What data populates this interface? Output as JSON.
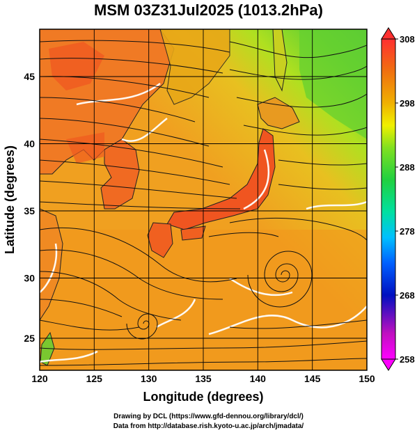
{
  "title": "MSM 03Z31Jul2025 (1013.2hPa)",
  "map": {
    "lon_range": [
      120,
      150
    ],
    "lat_range": [
      22.5,
      48
    ],
    "lon_ticks": [
      "120",
      "125",
      "130",
      "135",
      "140",
      "145",
      "150"
    ],
    "lat_ticks": [
      "25",
      "30",
      "35",
      "40",
      "45"
    ],
    "xlabel": "Longitude (degrees)",
    "ylabel": "Latitude  (degrees)",
    "grid": true,
    "field": "temperature shaded, streamlines",
    "colors": {
      "ocean_warm": "#f0a020",
      "ocean_hot": "#f38a1c",
      "land_hot": "#f05a20",
      "cool_north": "#88dd22",
      "cooler_north": "#55cc33",
      "streamline": "#111111",
      "contour": "#ffffff"
    }
  },
  "colorbar": {
    "ticks": [
      "308",
      "298",
      "288",
      "278",
      "268",
      "258"
    ],
    "stops": [
      "#ff00ff",
      "#c010c0",
      "#0010c0",
      "#0060ff",
      "#00c0ff",
      "#00e0a0",
      "#20d040",
      "#80e020",
      "#f0f000",
      "#f0b000",
      "#f07010",
      "#ff3030"
    ]
  },
  "credits": {
    "line1": "Drawing by DCL (https://www.gfd-dennou.org/library/dcl/)",
    "line2": "Data from http://database.rish.kyoto-u.ac.jp/arch/jmadata/"
  }
}
